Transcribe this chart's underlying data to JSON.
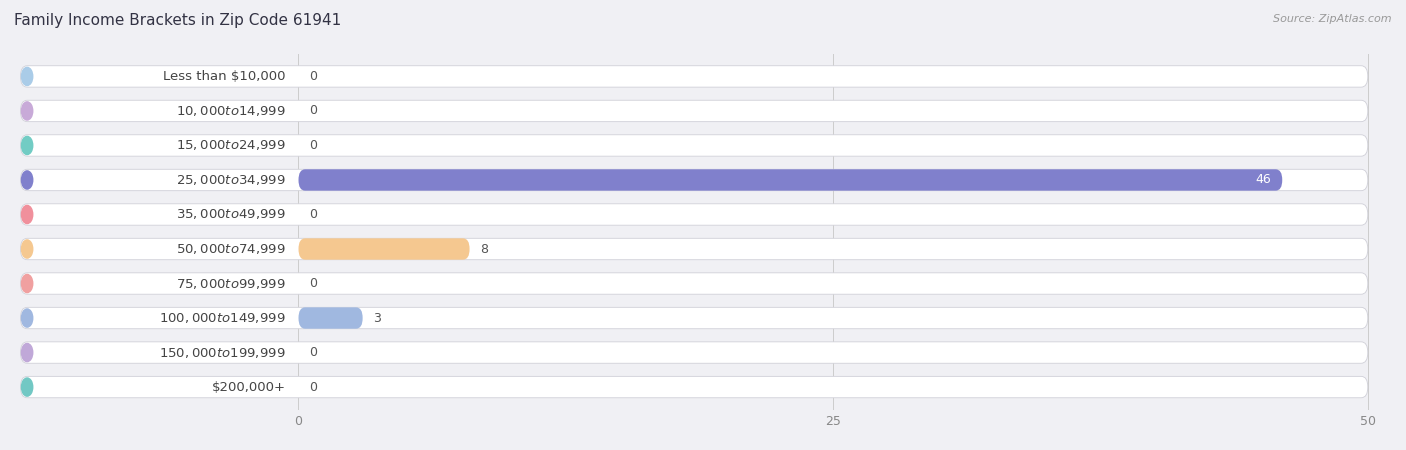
{
  "title": "Family Income Brackets in Zip Code 61941",
  "source": "Source: ZipAtlas.com",
  "categories": [
    "Less than $10,000",
    "$10,000 to $14,999",
    "$15,000 to $24,999",
    "$25,000 to $34,999",
    "$35,000 to $49,999",
    "$50,000 to $74,999",
    "$75,000 to $99,999",
    "$100,000 to $149,999",
    "$150,000 to $199,999",
    "$200,000+"
  ],
  "values": [
    0,
    0,
    0,
    46,
    0,
    8,
    0,
    3,
    0,
    0
  ],
  "bar_colors": [
    "#aacce8",
    "#c8aad8",
    "#72ccc4",
    "#8080cc",
    "#f0909c",
    "#f5c890",
    "#f0a0a0",
    "#a0b8e0",
    "#c0a8d8",
    "#72c8c4"
  ],
  "xlim_data": [
    0,
    50
  ],
  "xticks": [
    0,
    25,
    50
  ],
  "background_color": "#f0f0f4",
  "row_bg_color": "#ffffff",
  "title_fontsize": 11,
  "label_fontsize": 9.5,
  "value_fontsize": 9,
  "source_fontsize": 8
}
